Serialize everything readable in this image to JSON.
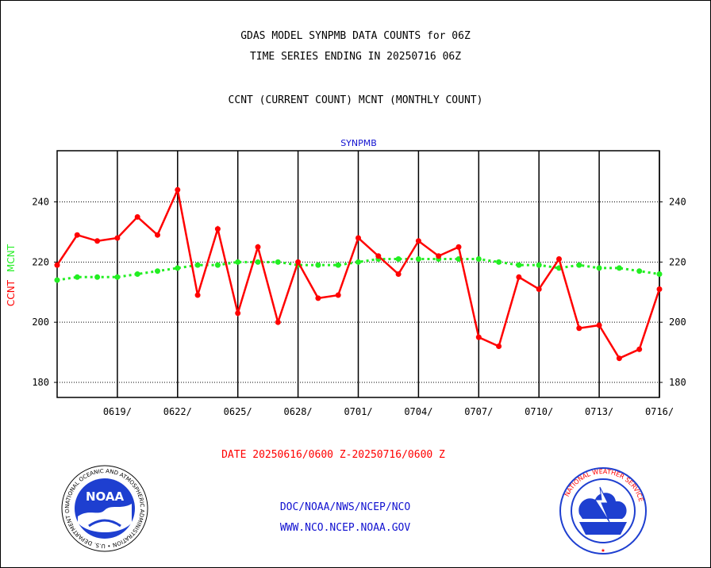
{
  "header": {
    "line1": "GDAS MODEL SYNPMB DATA COUNTS for 06Z",
    "line2": "TIME SERIES ENDING IN 20250716 06Z",
    "line3": "CCNT (CURRENT COUNT) MCNT (MONTHLY COUNT)"
  },
  "footer": {
    "date_range": "DATE 20250616/0600 Z-20250716/0600 Z",
    "org_path": "DOC/NOAA/NWS/NCEP/NCO",
    "website": "WWW.NCO.NCEP.NOAA.GOV"
  },
  "logos": {
    "noaa_text": "NOAA",
    "noaa_ring": "NATIONAL OCEANIC AND ATMOSPHERIC ADMINISTRATION • U.S. DEPARTMENT OF COMMERCE",
    "nws_ring": "NATIONAL WEATHER SERVICE"
  },
  "colors": {
    "ccnt": "#ff0000",
    "mcnt": "#22ee22",
    "title_blue": "#1010d0",
    "axis": "#000000"
  },
  "chart_data": {
    "type": "line",
    "title": "SYNPMB",
    "ylabel_parts": [
      "CCNT",
      "MCNT"
    ],
    "ylim": [
      175,
      257
    ],
    "yticks": [
      180,
      200,
      220,
      240
    ],
    "xlim": [
      0,
      30
    ],
    "xticks": [
      {
        "x": 3,
        "label": "0619/"
      },
      {
        "x": 6,
        "label": "0622/"
      },
      {
        "x": 9,
        "label": "0625/"
      },
      {
        "x": 12,
        "label": "0628/"
      },
      {
        "x": 15,
        "label": "0701/"
      },
      {
        "x": 18,
        "label": "0704/"
      },
      {
        "x": 21,
        "label": "0707/"
      },
      {
        "x": 24,
        "label": "0710/"
      },
      {
        "x": 27,
        "label": "0713/"
      },
      {
        "x": 30,
        "label": "0716/"
      }
    ],
    "grid": true,
    "series": [
      {
        "name": "CCNT",
        "values": [
          219,
          229,
          227,
          228,
          235,
          229,
          244,
          209,
          231,
          203,
          225,
          200,
          220,
          208,
          209,
          228,
          222,
          216,
          227,
          222,
          225,
          195,
          192,
          215,
          211,
          221,
          198,
          199,
          188,
          191,
          211
        ]
      },
      {
        "name": "MCNT",
        "values": [
          214,
          215,
          215,
          215,
          216,
          217,
          218,
          219,
          219,
          220,
          220,
          220,
          219,
          219,
          219,
          220,
          221,
          221,
          221,
          221,
          221,
          221,
          220,
          219,
          219,
          218,
          219,
          218,
          218,
          217,
          216
        ]
      }
    ]
  }
}
